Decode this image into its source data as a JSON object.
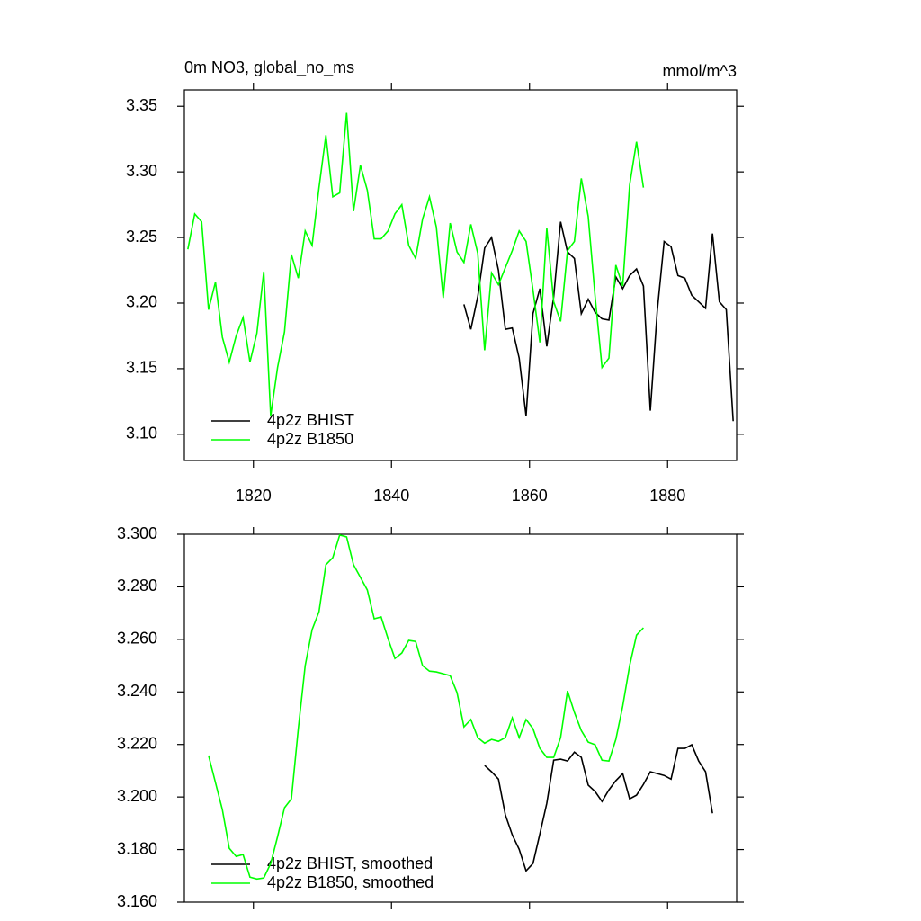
{
  "chart_data": [
    {
      "type": "line",
      "title": "0m NO3, global_no_ms",
      "units": "mmol/m^3",
      "xlim": [
        1810,
        1890
      ],
      "xticks": [
        1820,
        1840,
        1860,
        1880
      ],
      "ylim": [
        3.08,
        3.3625
      ],
      "yticks": [
        {
          "value": 3.1,
          "label": "3.10"
        },
        3.15,
        {
          "value": 3.2,
          "label": "3.20"
        },
        3.25,
        {
          "value": 3.3,
          "label": "3.30"
        },
        3.35
      ],
      "series": [
        {
          "name": "4p2z BHIST",
          "color": "#000000",
          "x": [
            1850.5,
            1851.5,
            1852.5,
            1853.5,
            1854.5,
            1855.5,
            1856.5,
            1857.5,
            1858.5,
            1859.5,
            1860.5,
            1861.5,
            1862.5,
            1863.5,
            1864.5,
            1865.5,
            1866.5,
            1867.5,
            1868.5,
            1869.5,
            1870.5,
            1871.5,
            1872.5,
            1873.5,
            1874.5,
            1875.5,
            1876.5,
            1877.5,
            1878.5,
            1879.5,
            1880.5,
            1881.5,
            1882.5,
            1883.5,
            1884.5,
            1885.5,
            1886.5,
            1887.5,
            1888.5,
            1889.5
          ],
          "values": [
            3.199,
            3.18,
            3.205,
            3.242,
            3.25,
            3.225,
            3.18,
            3.181,
            3.158,
            3.114,
            3.192,
            3.211,
            3.167,
            3.205,
            3.262,
            3.239,
            3.234,
            3.192,
            3.203,
            3.193,
            3.188,
            3.187,
            3.22,
            3.211,
            3.221,
            3.226,
            3.213,
            3.118,
            3.194,
            3.247,
            3.243,
            3.221,
            3.219,
            3.206,
            3.201,
            3.196,
            3.253,
            3.201,
            3.195,
            3.11
          ]
        },
        {
          "name": "4p2z B1850",
          "color": "#00ff00",
          "x": [
            1810.5,
            1811.5,
            1812.5,
            1813.5,
            1814.5,
            1815.5,
            1816.5,
            1817.5,
            1818.5,
            1819.5,
            1820.5,
            1821.5,
            1822.5,
            1823.5,
            1824.5,
            1825.5,
            1826.5,
            1827.5,
            1828.5,
            1829.5,
            1830.5,
            1831.5,
            1832.5,
            1833.5,
            1834.5,
            1835.5,
            1836.5,
            1837.5,
            1838.5,
            1839.5,
            1840.5,
            1841.5,
            1842.5,
            1843.5,
            1844.5,
            1845.5,
            1846.5,
            1847.5,
            1848.5,
            1849.5,
            1850.5,
            1851.5,
            1852.5,
            1853.5,
            1854.5,
            1855.5,
            1856.5,
            1857.5,
            1858.5,
            1859.5,
            1860.5,
            1861.5,
            1862.5,
            1863.5,
            1864.5,
            1865.5,
            1866.5,
            1867.5,
            1868.5,
            1869.5,
            1870.5,
            1871.5,
            1872.5,
            1873.5,
            1874.5,
            1875.5,
            1876.5
          ],
          "values": [
            3.241,
            3.268,
            3.262,
            3.195,
            3.216,
            3.174,
            3.155,
            3.175,
            3.189,
            3.155,
            3.177,
            3.224,
            3.114,
            3.151,
            3.178,
            3.237,
            3.219,
            3.255,
            3.244,
            3.288,
            3.328,
            3.281,
            3.284,
            3.345,
            3.27,
            3.305,
            3.286,
            3.249,
            3.249,
            3.255,
            3.268,
            3.275,
            3.244,
            3.234,
            3.264,
            3.281,
            3.258,
            3.204,
            3.261,
            3.239,
            3.231,
            3.26,
            3.238,
            3.164,
            3.223,
            3.214,
            3.227,
            3.24,
            3.255,
            3.247,
            3.21,
            3.17,
            3.257,
            3.201,
            3.186,
            3.24,
            3.247,
            3.295,
            3.266,
            3.205,
            3.151,
            3.158,
            3.229,
            3.213,
            3.29,
            3.323,
            3.288
          ]
        }
      ]
    },
    {
      "type": "line",
      "xlim": [
        1810,
        1890
      ],
      "xticks": [
        1820,
        1840,
        1860,
        1880
      ],
      "ylim": [
        3.16,
        3.3
      ],
      "yticks": [
        {
          "value": 3.16,
          "label": "3.160"
        },
        {
          "value": 3.18,
          "label": "3.180"
        },
        {
          "value": 3.2,
          "label": "3.200"
        },
        {
          "value": 3.22,
          "label": "3.220"
        },
        {
          "value": 3.24,
          "label": "3.240"
        },
        {
          "value": 3.26,
          "label": "3.260"
        },
        {
          "value": 3.28,
          "label": "3.280"
        },
        {
          "value": 3.3,
          "label": "3.300"
        }
      ],
      "series": [
        {
          "name": "4p2z BHIST, smoothed",
          "color": "#000000",
          "x": [
            1853.5,
            1854.5,
            1855.5,
            1856.5,
            1857.5,
            1858.5,
            1859.5,
            1860.5,
            1861.5,
            1862.5,
            1863.5,
            1864.5,
            1865.5,
            1866.5,
            1867.5,
            1868.5,
            1869.5,
            1870.5,
            1871.5,
            1872.5,
            1873.5,
            1874.5,
            1875.5,
            1876.5,
            1877.5,
            1878.5,
            1879.5,
            1880.5,
            1881.5,
            1882.5,
            1883.5,
            1884.5,
            1885.5,
            1886.5
          ],
          "values": [
            3.212,
            3.2096,
            3.2068,
            3.1932,
            3.1856,
            3.1801,
            3.1719,
            3.1747,
            3.186,
            3.1976,
            3.214,
            3.2144,
            3.2137,
            3.2171,
            3.2151,
            3.2045,
            3.2021,
            3.1983,
            3.2027,
            3.2062,
            3.2089,
            3.1993,
            3.2007,
            3.2048,
            3.2096,
            3.2089,
            3.2082,
            3.2068,
            3.2185,
            3.2185,
            3.2199,
            3.2137,
            3.2096,
            3.1938
          ]
        },
        {
          "name": "4p2z B1850, smoothed",
          "color": "#00ff00",
          "x": [
            1813.5,
            1814.5,
            1815.5,
            1816.5,
            1817.5,
            1818.5,
            1819.5,
            1820.5,
            1821.5,
            1822.5,
            1823.5,
            1824.5,
            1825.5,
            1826.5,
            1827.5,
            1828.5,
            1829.5,
            1830.5,
            1831.5,
            1832.5,
            1833.5,
            1834.5,
            1835.5,
            1836.5,
            1837.5,
            1838.5,
            1839.5,
            1840.5,
            1841.5,
            1842.5,
            1843.5,
            1844.5,
            1845.5,
            1846.5,
            1847.5,
            1848.5,
            1849.5,
            1850.5,
            1851.5,
            1852.5,
            1853.5,
            1854.5,
            1855.5,
            1856.5,
            1857.5,
            1858.5,
            1859.5,
            1860.5,
            1861.5,
            1862.5,
            1863.5,
            1864.5,
            1865.5,
            1866.5,
            1867.5,
            1868.5,
            1869.5,
            1870.5,
            1871.5,
            1872.5,
            1873.5,
            1874.5,
            1875.5,
            1876.5
          ],
          "values": [
            3.2158,
            3.2055,
            3.1952,
            3.1805,
            3.1774,
            3.1781,
            3.1695,
            3.1688,
            3.1692,
            3.1747,
            3.1849,
            3.1959,
            3.1993,
            3.226,
            3.25,
            3.2637,
            3.2705,
            3.2884,
            3.2911,
            3.2997,
            3.299,
            3.2884,
            3.2836,
            3.2788,
            3.2678,
            3.2685,
            3.2603,
            3.2527,
            3.2548,
            3.2596,
            3.2592,
            3.25,
            3.2479,
            3.2476,
            3.2469,
            3.2462,
            3.2397,
            3.2267,
            3.2295,
            3.2226,
            3.2205,
            3.2219,
            3.2212,
            3.2226,
            3.2301,
            3.2226,
            3.2295,
            3.226,
            3.2185,
            3.2151,
            3.2151,
            3.2226,
            3.2404,
            3.2322,
            3.2253,
            3.2209,
            3.2199,
            3.214,
            3.2137,
            3.2219,
            3.2346,
            3.25,
            3.2616,
            3.2644
          ]
        }
      ]
    }
  ]
}
